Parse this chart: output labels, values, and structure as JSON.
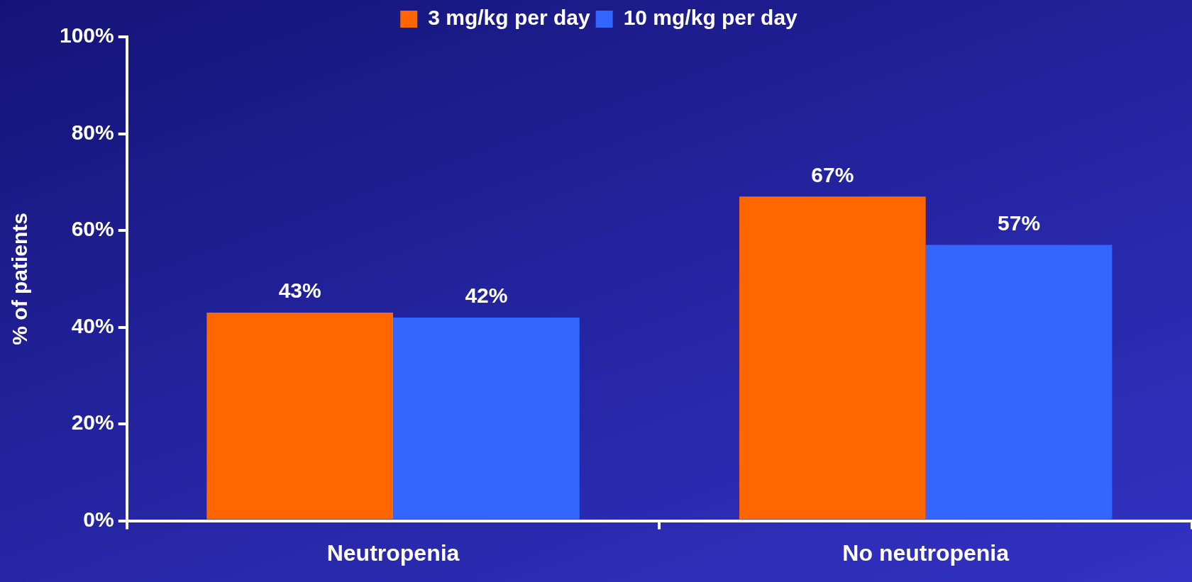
{
  "chart_data": {
    "type": "bar",
    "ylabel": "% of patients",
    "categories": [
      "Neutropenia",
      "No neutropenia"
    ],
    "series": [
      {
        "name": "3 mg/kg per day",
        "color": "#ff6600",
        "values": [
          43,
          67
        ],
        "value_labels": [
          "43%",
          "67%"
        ]
      },
      {
        "name": "10 mg/kg per day",
        "color": "#3366ff",
        "values": [
          42,
          57
        ],
        "value_labels": [
          "42%",
          "57%"
        ]
      }
    ],
    "ylim": [
      0,
      100
    ],
    "yticks": [
      {
        "value": 0,
        "label": "0%"
      },
      {
        "value": 20,
        "label": "20%"
      },
      {
        "value": 40,
        "label": "40%"
      },
      {
        "value": 60,
        "label": "60%"
      },
      {
        "value": 80,
        "label": "80%"
      },
      {
        "value": 100,
        "label": "100%"
      }
    ],
    "grid": false,
    "legend": "top"
  }
}
